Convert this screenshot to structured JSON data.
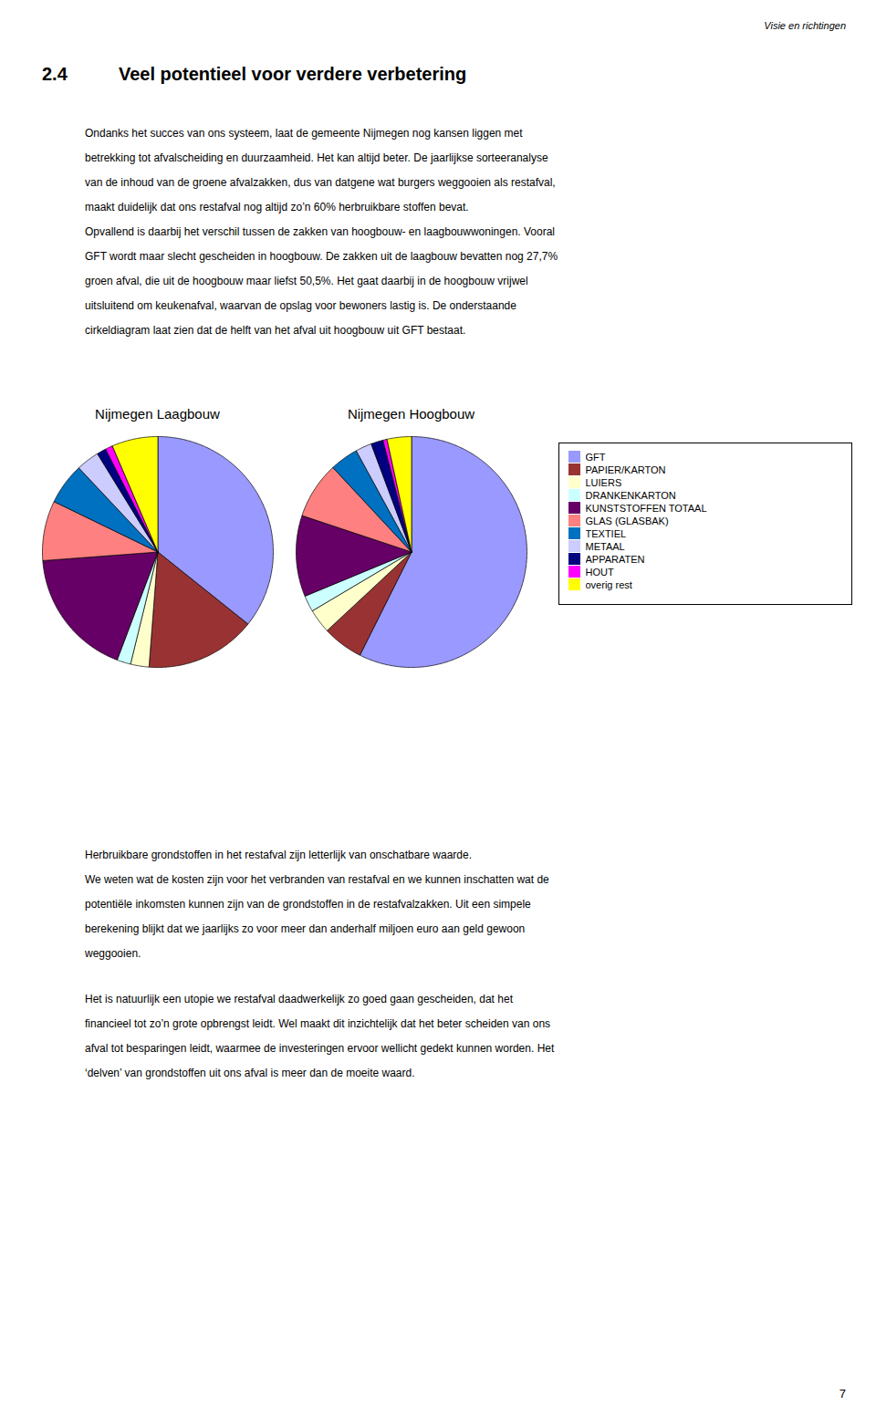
{
  "chart_data": [
    {
      "type": "pie",
      "title": "Nijmegen Laagbouw",
      "categories": [
        "GFT",
        "PAPIER/KARTON",
        "LUIERS",
        "DRANKENKARTON",
        "KUNSTSTOFFEN TOTAAL",
        "GLAS (GLASBAK)",
        "TEXTIEL",
        "METAAL",
        "APPARATEN",
        "HOUT",
        "overig rest"
      ],
      "values": [
        27.7,
        12.0,
        2.0,
        1.5,
        14.0,
        6.5,
        4.5,
        2.5,
        1.0,
        0.8,
        5.0
      ],
      "colors": [
        "#9999FF",
        "#993333",
        "#FFFFCC",
        "#CCFFFF",
        "#660066",
        "#FF8080",
        "#0070C0",
        "#CCCCFF",
        "#000080",
        "#FF00FF",
        "#FFFF00"
      ]
    },
    {
      "type": "pie",
      "title": "Nijmegen Hoogbouw",
      "categories": [
        "GFT",
        "PAPIER/KARTON",
        "LUIERS",
        "DRANKENKARTON",
        "KUNSTSTOFFEN TOTAAL",
        "GLAS (GLASBAK)",
        "TEXTIEL",
        "METAAL",
        "APPARATEN",
        "HOUT",
        "overig rest"
      ],
      "values": [
        50.5,
        5.0,
        3.0,
        2.0,
        10.0,
        7.0,
        3.5,
        2.0,
        1.5,
        0.5,
        3.0
      ],
      "colors": [
        "#9999FF",
        "#993333",
        "#FFFFCC",
        "#CCFFFF",
        "#660066",
        "#FF8080",
        "#0070C0",
        "#CCCCFF",
        "#000080",
        "#FF00FF",
        "#FFFF00"
      ],
      "legend": "right"
    }
  ],
  "annotations": {
    "header": "Visie en richtingen",
    "section_number": "2.4",
    "section_title": "Veel potentieel voor verdere verbetering",
    "paragraphs": [
      [
        "Ondanks het succes van ons systeem, laat de gemeente Nijmegen nog kansen liggen met",
        "betrekking tot afvalscheiding en duurzaamheid. Het kan altijd beter. De jaarlijkse sorteeranalyse",
        "van de inhoud van de groene afvalzakken, dus van datgene wat burgers weggooien als restafval,",
        "maakt duidelijk dat ons restafval nog altijd zo’n 60% herbruikbare stoffen bevat.",
        "Opvallend is daarbij het verschil tussen de zakken van hoogbouw- en laagbouwwoningen. Vooral",
        "GFT wordt maar slecht gescheiden in hoogbouw. De zakken uit de laagbouw bevatten nog 27,7%",
        "groen afval, die uit de hoogbouw maar liefst 50,5%.  Het gaat daarbij in de hoogbouw vrijwel",
        "uitsluitend om keukenafval, waarvan de opslag voor bewoners lastig is. De onderstaande",
        "cirkeldiagram laat zien dat de helft van het afval uit hoogbouw uit GFT bestaat."
      ],
      [
        "Herbruikbare grondstoffen in het restafval zijn letterlijk van onschatbare waarde.",
        "We weten wat de kosten zijn voor het verbranden van restafval en we kunnen inschatten wat de",
        "potentiële inkomsten kunnen zijn van de grondstoffen in de restafvalzakken. Uit een simpele",
        "berekening blijkt dat we jaarlijks zo voor meer dan anderhalf miljoen euro aan geld gewoon",
        "weggooien."
      ],
      [
        "Het is natuurlijk een utopie we restafval daadwerkelijk zo goed gaan gescheiden, dat het",
        "financieel tot zo’n grote opbrengst leidt. Wel maakt dit inzichtelijk dat het beter scheiden van ons",
        "afval tot besparingen leidt, waarmee de investeringen ervoor wellicht gedekt kunnen worden. Het",
        "‘delven’ van grondstoffen uit ons afval is meer dan de moeite waard."
      ]
    ],
    "page_number": "7"
  }
}
